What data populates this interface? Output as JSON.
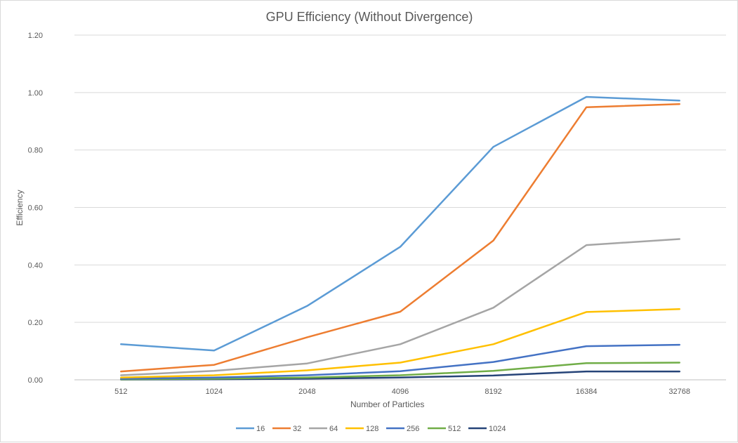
{
  "chart_data": {
    "type": "line",
    "title": "GPU Efficiency (Without Divergence)",
    "xlabel": "Number  of Particles",
    "ylabel": "Efficiency",
    "categories": [
      "512",
      "1024",
      "2048",
      "4096",
      "8192",
      "16384",
      "32768"
    ],
    "ylim": [
      0,
      1.2
    ],
    "yticks": [
      "0.00",
      "0.20",
      "0.40",
      "0.60",
      "0.80",
      "1.00",
      "1.20"
    ],
    "grid": true,
    "legend_position": "bottom",
    "series": [
      {
        "name": "16",
        "color": "#5b9bd5",
        "values": [
          0.124,
          0.102,
          0.257,
          0.463,
          0.811,
          0.985,
          0.972
        ]
      },
      {
        "name": "32",
        "color": "#ed7d31",
        "values": [
          0.029,
          0.052,
          0.148,
          0.237,
          0.485,
          0.949,
          0.96
        ]
      },
      {
        "name": "64",
        "color": "#a5a5a5",
        "values": [
          0.016,
          0.031,
          0.057,
          0.124,
          0.251,
          0.469,
          0.49
        ]
      },
      {
        "name": "128",
        "color": "#ffc000",
        "values": [
          0.008,
          0.016,
          0.033,
          0.06,
          0.124,
          0.236,
          0.246
        ]
      },
      {
        "name": "256",
        "color": "#4472c4",
        "values": [
          0.004,
          0.008,
          0.016,
          0.03,
          0.062,
          0.117,
          0.122
        ]
      },
      {
        "name": "512",
        "color": "#70ad47",
        "values": [
          0.002,
          0.004,
          0.008,
          0.016,
          0.031,
          0.058,
          0.06
        ]
      },
      {
        "name": "1024",
        "color": "#264478",
        "values": [
          0.001,
          0.002,
          0.004,
          0.008,
          0.015,
          0.029,
          0.029
        ]
      }
    ]
  }
}
